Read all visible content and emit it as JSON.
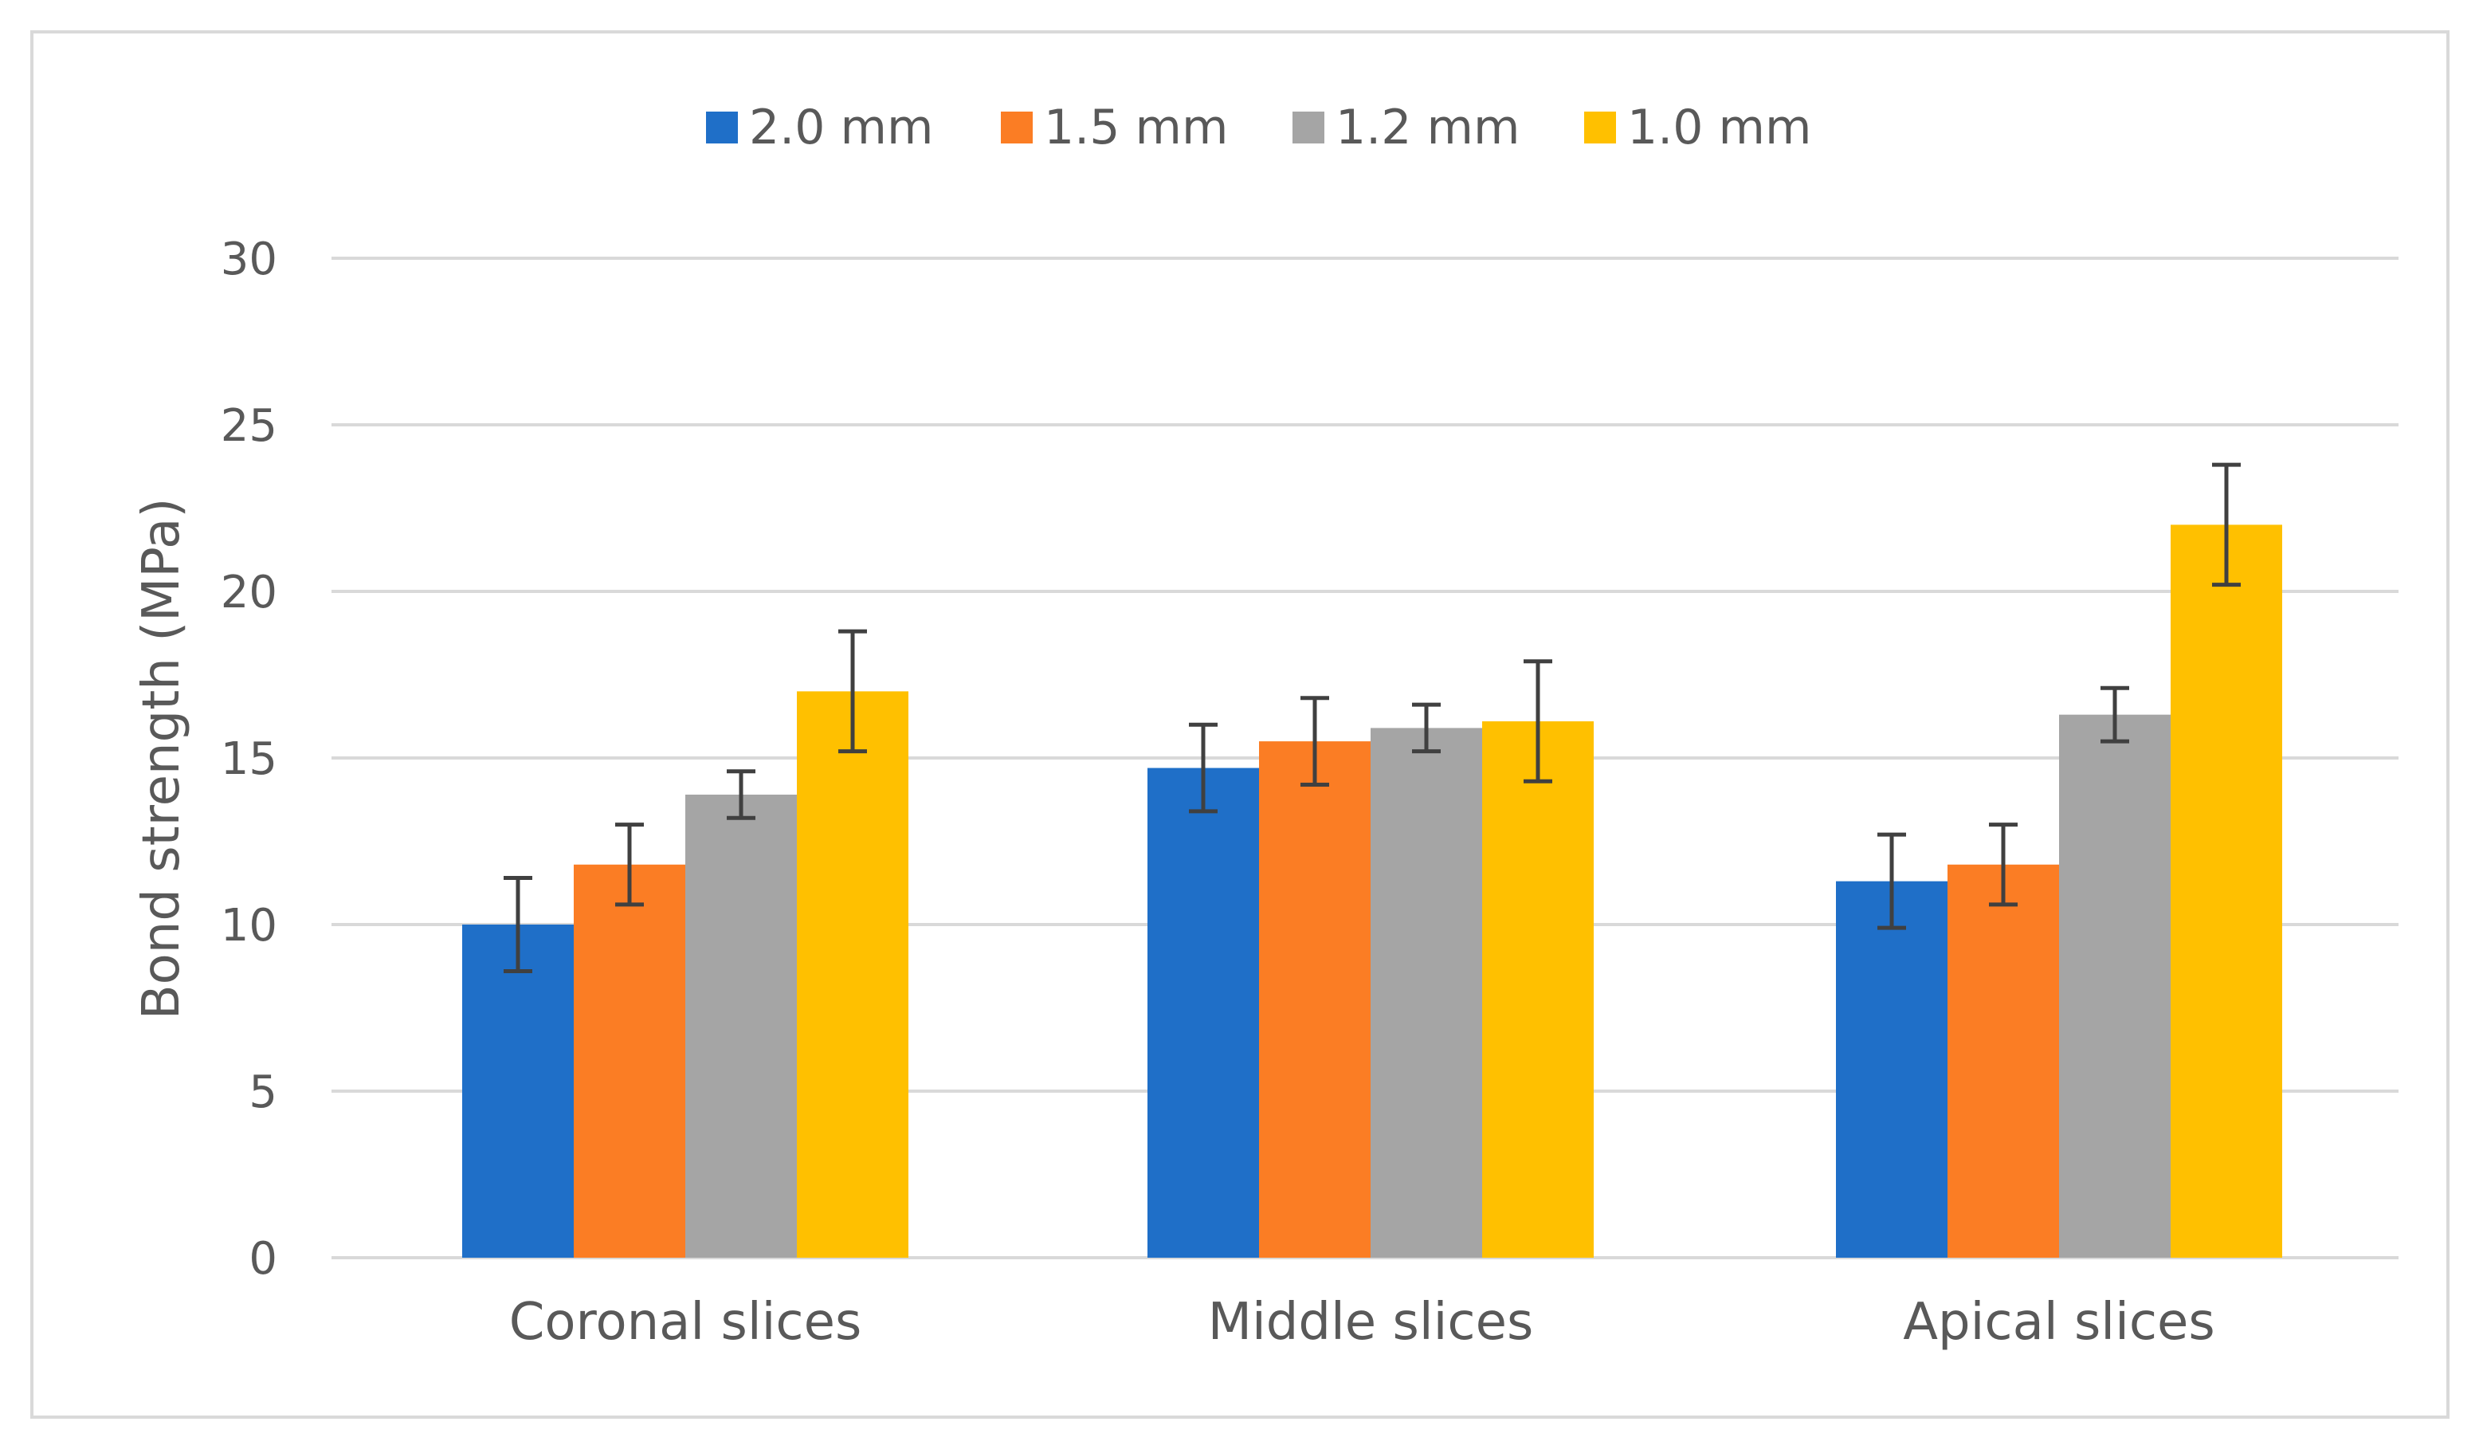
{
  "chart_data": {
    "type": "bar",
    "title": "",
    "xlabel": "",
    "ylabel": "Bond strength (MPa)",
    "ylim": [
      0,
      30
    ],
    "yticks": [
      0,
      5,
      10,
      15,
      20,
      25,
      30
    ],
    "grid": true,
    "legend_position": "top-center",
    "categories": [
      "Coronal slices",
      "Middle slices",
      "Apical slices"
    ],
    "series": [
      {
        "name": "2.0 mm",
        "color": "#1f6fc8",
        "values": [
          10.0,
          14.7,
          11.3
        ],
        "errors": [
          1.4,
          1.3,
          1.4
        ]
      },
      {
        "name": "1.5 mm",
        "color": "#fb7d24",
        "values": [
          11.8,
          15.5,
          11.8
        ],
        "errors": [
          1.2,
          1.3,
          1.2
        ]
      },
      {
        "name": "1.2 mm",
        "color": "#a5a5a5",
        "values": [
          13.9,
          15.9,
          16.3
        ],
        "errors": [
          0.7,
          0.7,
          0.8
        ]
      },
      {
        "name": "1.0 mm",
        "color": "#ffc000",
        "values": [
          17.0,
          16.1,
          22.0
        ],
        "errors": [
          1.8,
          1.8,
          1.8
        ]
      }
    ],
    "error_bar_color": "#404040",
    "gridline_color": "#d9d9d9"
  }
}
